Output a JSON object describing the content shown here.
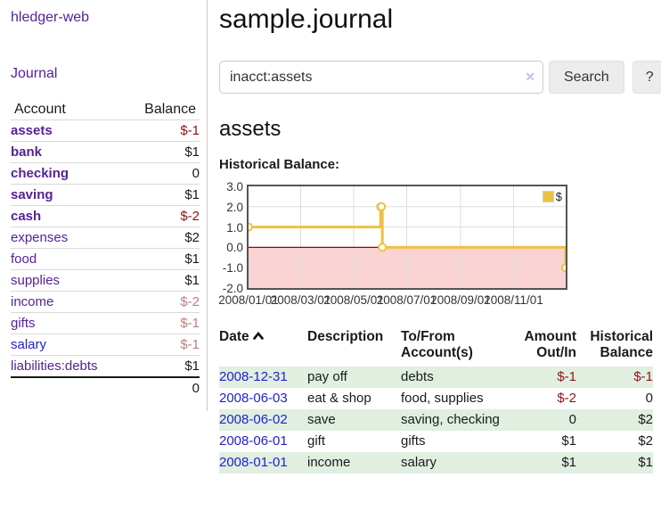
{
  "colors": {
    "link_purple": "#552299",
    "link_blue": "#2222cc",
    "negative": "#8f1414",
    "negative_muted": "#c17d7d",
    "row_green": "#e0efe0",
    "chart_yellow": "#edc240"
  },
  "sidebar": {
    "app_title": "hledger-web",
    "journal_link": "Journal",
    "accounts_table": {
      "headers": {
        "account": "Account",
        "balance": "Balance"
      },
      "rows": [
        {
          "account": "assets",
          "balance": "$-1",
          "level": 0,
          "bold": true,
          "balance_class": "neg",
          "link_color": "purple"
        },
        {
          "account": "bank",
          "balance": "$1",
          "level": 1,
          "bold": true,
          "balance_class": "",
          "link_color": "purple"
        },
        {
          "account": "checking",
          "balance": "0",
          "level": 2,
          "bold": true,
          "balance_class": "",
          "link_color": "purple"
        },
        {
          "account": "saving",
          "balance": "$1",
          "level": 2,
          "bold": true,
          "balance_class": "",
          "link_color": "purple"
        },
        {
          "account": "cash",
          "balance": "$-2",
          "level": 1,
          "bold": true,
          "balance_class": "neg",
          "link_color": "purple"
        },
        {
          "account": "expenses",
          "balance": "$2",
          "level": 0,
          "bold": false,
          "balance_class": "",
          "link_color": "purple"
        },
        {
          "account": "food",
          "balance": "$1",
          "level": 1,
          "bold": false,
          "balance_class": "",
          "link_color": "purple"
        },
        {
          "account": "supplies",
          "balance": "$1",
          "level": 1,
          "bold": false,
          "balance_class": "",
          "link_color": "purple"
        },
        {
          "account": "income",
          "balance": "$-2",
          "level": 0,
          "bold": false,
          "balance_class": "negm",
          "link_color": "purple"
        },
        {
          "account": "gifts",
          "balance": "$-1",
          "level": 1,
          "bold": false,
          "balance_class": "negm",
          "link_color": "purple"
        },
        {
          "account": "salary",
          "balance": "$-1",
          "level": 1,
          "bold": false,
          "balance_class": "negm",
          "link_color": "blue"
        },
        {
          "account": "liabilities:debts",
          "balance": "$1",
          "level": 0,
          "bold": false,
          "balance_class": "",
          "link_color": "purple"
        }
      ],
      "total": "0"
    }
  },
  "main": {
    "title": "sample.journal",
    "search": {
      "value": "inacct:assets",
      "clear_icon": "✕",
      "search_button": "Search",
      "help_button": "?"
    },
    "account_heading": "assets",
    "chart_label": "Historical Balance:"
  },
  "chart_data": {
    "type": "line",
    "style": "steps",
    "title": "Historical Balance:",
    "series": [
      {
        "name": "$",
        "color": "#edc240",
        "points": [
          [
            "2008-01-01",
            1
          ],
          [
            "2008-06-01",
            2
          ],
          [
            "2008-06-02",
            2
          ],
          [
            "2008-06-03",
            0
          ],
          [
            "2008-12-31",
            -1
          ]
        ]
      }
    ],
    "xlim": [
      "2008-01-01",
      "2008-12-31"
    ],
    "ylim": [
      -2,
      3
    ],
    "y_ticks": [
      3.0,
      2.0,
      1.0,
      0.0,
      -1.0,
      -2.0
    ],
    "x_ticks": [
      "2008/01/01",
      "2008/03/01",
      "2008/05/01",
      "2008/07/01",
      "2008/09/01",
      "2008/11/01"
    ],
    "grid": true,
    "legend_position": "top-right",
    "negative_region_fill": "#f9d2d2",
    "zero_line_color": "#9b0000",
    "grid_color": "#dedede"
  },
  "register": {
    "headers": {
      "date": "Date",
      "sort_icon": "chevron-up",
      "description": "Description",
      "accounts_line1": "To/From",
      "accounts_line2": "Account(s)",
      "amount_line1": "Amount",
      "amount_line2": "Out/In",
      "balance_line1": "Historical",
      "balance_line2": "Balance"
    },
    "rows": [
      {
        "date": "2008-12-31",
        "description": "pay off",
        "accounts": "debts",
        "amount": "$-1",
        "balance": "$-1",
        "amount_class": "neg",
        "balance_class": "neg"
      },
      {
        "date": "2008-06-03",
        "description": "eat & shop",
        "accounts": "food, supplies",
        "amount": "$-2",
        "balance": "0",
        "amount_class": "neg",
        "balance_class": ""
      },
      {
        "date": "2008-06-02",
        "description": "save",
        "accounts": "saving, checking",
        "amount": "0",
        "balance": "$2",
        "amount_class": "",
        "balance_class": ""
      },
      {
        "date": "2008-06-01",
        "description": "gift",
        "accounts": "gifts",
        "amount": "$1",
        "balance": "$2",
        "amount_class": "",
        "balance_class": ""
      },
      {
        "date": "2008-01-01",
        "description": "income",
        "accounts": "salary",
        "amount": "$1",
        "balance": "$1",
        "amount_class": "",
        "balance_class": ""
      }
    ]
  }
}
